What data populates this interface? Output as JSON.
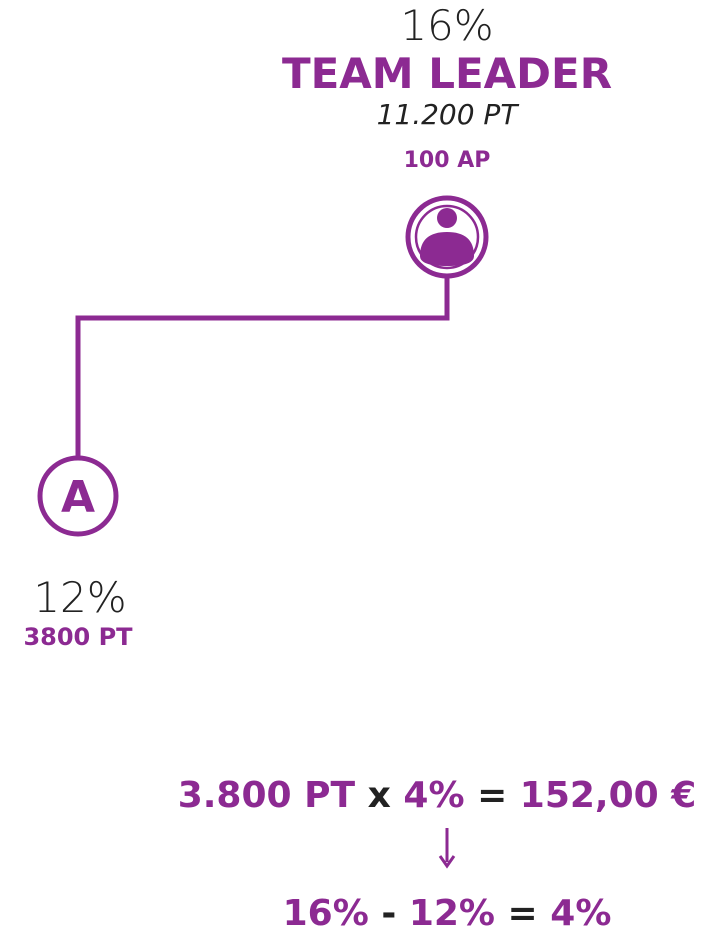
{
  "top_node": {
    "percent": "16%",
    "title": "TEAM LEADER",
    "points": "11.200 PT",
    "ap": "100 AP"
  },
  "node_a": {
    "label": "A",
    "percent": "12%",
    "points": "3800 PT"
  },
  "formula": {
    "parts": [
      "3.800 PT",
      "x",
      "4%",
      "=",
      "152,00 €"
    ]
  },
  "difference": {
    "parts": [
      "16%",
      "-",
      "12%",
      "=",
      "4%"
    ]
  }
}
